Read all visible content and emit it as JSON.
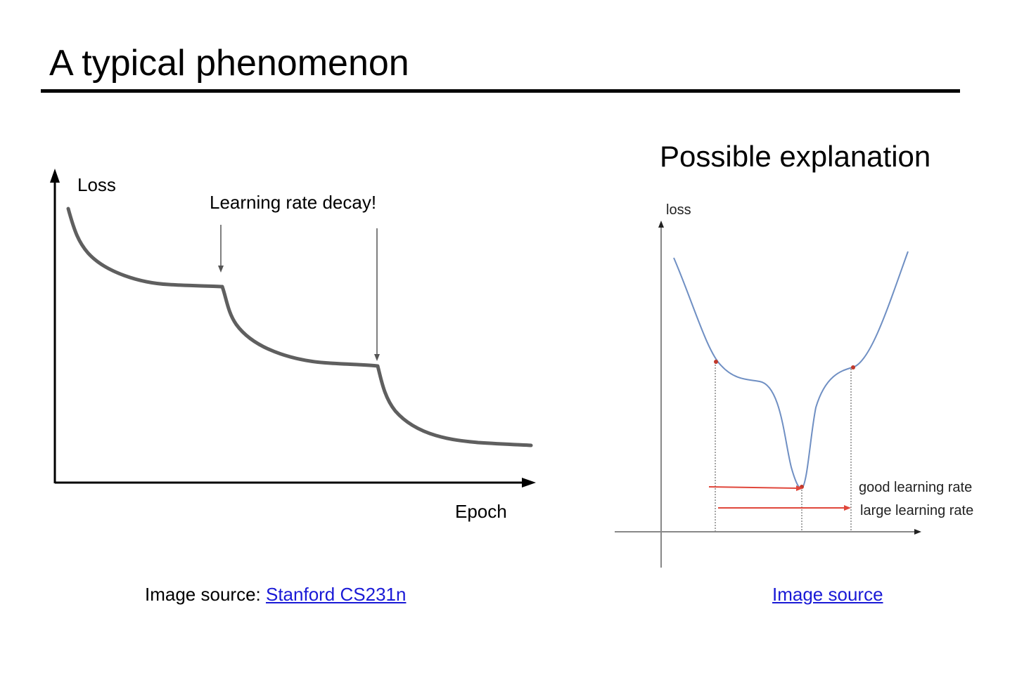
{
  "slide": {
    "title": "A typical phenomenon",
    "right_heading": "Possible explanation"
  },
  "left_figure": {
    "y_label": "Loss",
    "x_label": "Epoch",
    "annotation": "Learning rate decay!",
    "curve_color": "#5f5f5f"
  },
  "right_figure": {
    "y_label": "loss",
    "good_label": "good learning rate",
    "large_label": "large learning rate",
    "curve_color": "#6f8fc3",
    "arrow_color": "#e0473b"
  },
  "captions": {
    "left_prefix": "Image source: ",
    "left_link": "Stanford CS231n",
    "right_link": "Image source",
    "link_color": "#1a1ad6"
  }
}
